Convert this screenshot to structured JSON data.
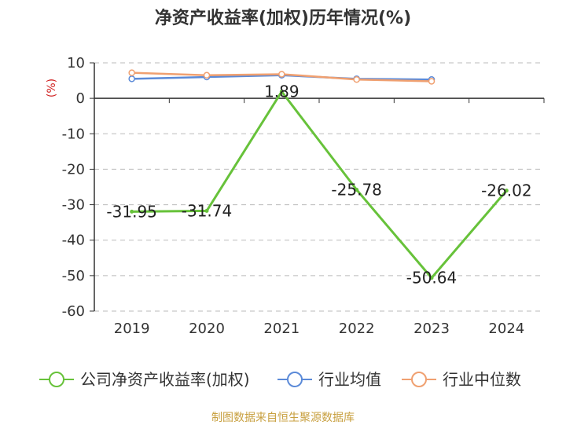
{
  "chart_data": {
    "type": "line",
    "title": "净资产收益率(加权)历年情况(%)",
    "ylabel": "(%)",
    "xlabel": "",
    "categories": [
      "2019",
      "2020",
      "2021",
      "2022",
      "2023",
      "2024"
    ],
    "ylim": [
      -60,
      10
    ],
    "yticks": [
      10,
      0,
      -10,
      -20,
      -30,
      -40,
      -50,
      -60
    ],
    "grid": true,
    "legend_position": "bottom",
    "series": [
      {
        "name": "公司净资产收益率(加权)",
        "color": "#67c23a",
        "values": [
          -31.95,
          -31.74,
          1.89,
          -25.78,
          -50.64,
          -26.02
        ],
        "labels": [
          "-31.95",
          "-31.74",
          "1.89",
          "-25.78",
          "-50.64",
          "-26.02"
        ]
      },
      {
        "name": "行业均值",
        "color": "#5b8ad8",
        "values": [
          5.5,
          6.0,
          6.5,
          5.5,
          5.3,
          null
        ]
      },
      {
        "name": "行业中位数",
        "color": "#f0a070",
        "values": [
          7.2,
          6.5,
          6.8,
          5.3,
          4.8,
          null
        ]
      }
    ]
  },
  "source_text": "制图数据来自恒生聚源数据库"
}
